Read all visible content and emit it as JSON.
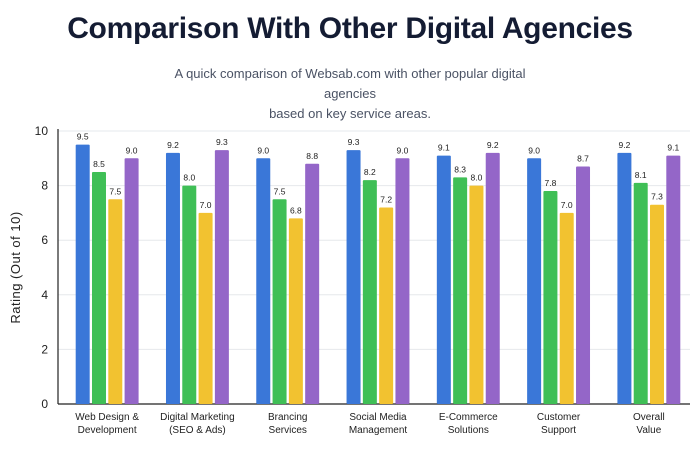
{
  "title": "Comparison With Other Digital Agencies",
  "subtitle_line1": "A quick comparison of Websab.com with other popular digital agencies",
  "subtitle_line2": "based on key service areas.",
  "colors": [
    "#3a77d8",
    "#3fbf56",
    "#f2c230",
    "#9466c8"
  ],
  "chart_data": {
    "type": "bar",
    "ylabel": "Rating (Out of 10)",
    "ylim": [
      0,
      10
    ],
    "yticks": [
      0,
      2,
      4,
      6,
      8,
      10
    ],
    "grid": true,
    "categories": [
      [
        "Web Design &",
        "Development"
      ],
      [
        "Digital Marketing",
        "(SEO & Ads)"
      ],
      [
        "Brancing",
        "Services"
      ],
      [
        "Social Media",
        "Management"
      ],
      [
        "E-Commerce",
        "Solutions"
      ],
      [
        "Customer",
        "Support"
      ],
      [
        "Overall",
        "Value"
      ]
    ],
    "series": [
      {
        "values": [
          9.5,
          9.2,
          9.0,
          9.3,
          9.1,
          9.0,
          9.2
        ]
      },
      {
        "values": [
          8.5,
          8.0,
          7.5,
          8.2,
          8.3,
          7.8,
          8.1
        ]
      },
      {
        "values": [
          7.5,
          7.0,
          6.8,
          7.2,
          8.0,
          7.0,
          7.3
        ]
      },
      {
        "values": [
          9.0,
          9.3,
          8.8,
          9.0,
          9.2,
          8.7,
          9.1
        ]
      }
    ]
  }
}
